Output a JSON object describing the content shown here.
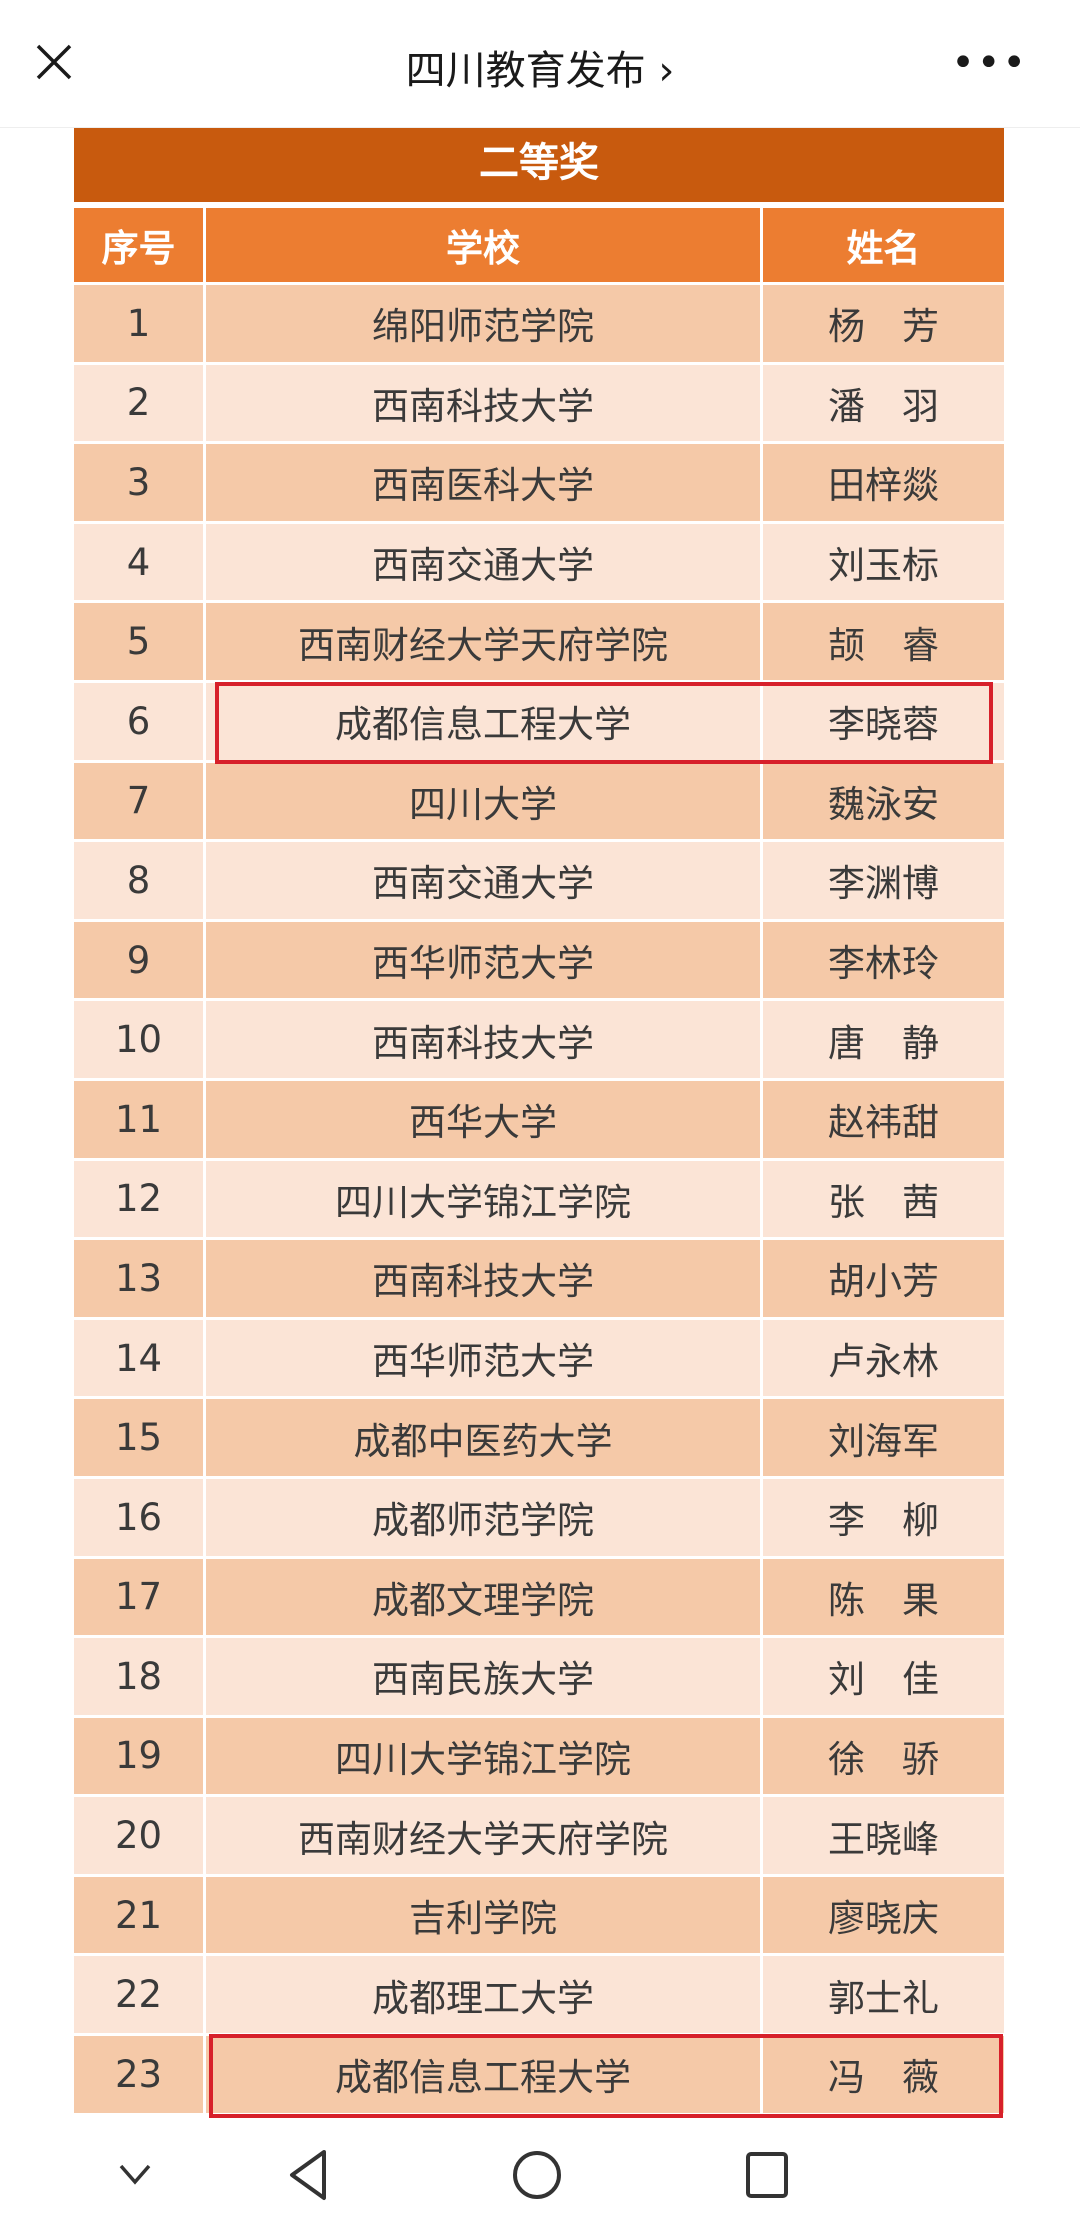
{
  "header": {
    "title": "四川教育发布 ›"
  },
  "table": {
    "title": "二等奖",
    "columns": [
      "序号",
      "学校",
      "姓名"
    ],
    "rows": [
      [
        "1",
        "绵阳师范学院",
        "杨　芳"
      ],
      [
        "2",
        "西南科技大学",
        "潘　羽"
      ],
      [
        "3",
        "西南医科大学",
        "田梓燚"
      ],
      [
        "4",
        "西南交通大学",
        "刘玉标"
      ],
      [
        "5",
        "西南财经大学天府学院",
        "颉　睿"
      ],
      [
        "6",
        "成都信息工程大学",
        "李晓蓉"
      ],
      [
        "7",
        "四川大学",
        "魏泳安"
      ],
      [
        "8",
        "西南交通大学",
        "李渊博"
      ],
      [
        "9",
        "西华师范大学",
        "李林玲"
      ],
      [
        "10",
        "西南科技大学",
        "唐　静"
      ],
      [
        "11",
        "西华大学",
        "赵祎甜"
      ],
      [
        "12",
        "四川大学锦江学院",
        "张　茜"
      ],
      [
        "13",
        "西南科技大学",
        "胡小芳"
      ],
      [
        "14",
        "西华师范大学",
        "卢永林"
      ],
      [
        "15",
        "成都中医药大学",
        "刘海军"
      ],
      [
        "16",
        "成都师范学院",
        "李　柳"
      ],
      [
        "17",
        "成都文理学院",
        "陈　果"
      ],
      [
        "18",
        "西南民族大学",
        "刘　佳"
      ],
      [
        "19",
        "四川大学锦江学院",
        "徐　骄"
      ],
      [
        "20",
        "西南财经大学天府学院",
        "王晓峰"
      ],
      [
        "21",
        "吉利学院",
        "廖晓庆"
      ],
      [
        "22",
        "成都理工大学",
        "郭士礼"
      ],
      [
        "23",
        "成都信息工程大学",
        "冯　薇"
      ]
    ],
    "highlighted_rows": [
      "6",
      "23"
    ]
  },
  "colors": {
    "banner": "#c85a0e",
    "header": "#ec7d31",
    "row_odd": "#f5c9a8",
    "row_even": "#fbe4d6",
    "highlight": "#d7202a"
  }
}
